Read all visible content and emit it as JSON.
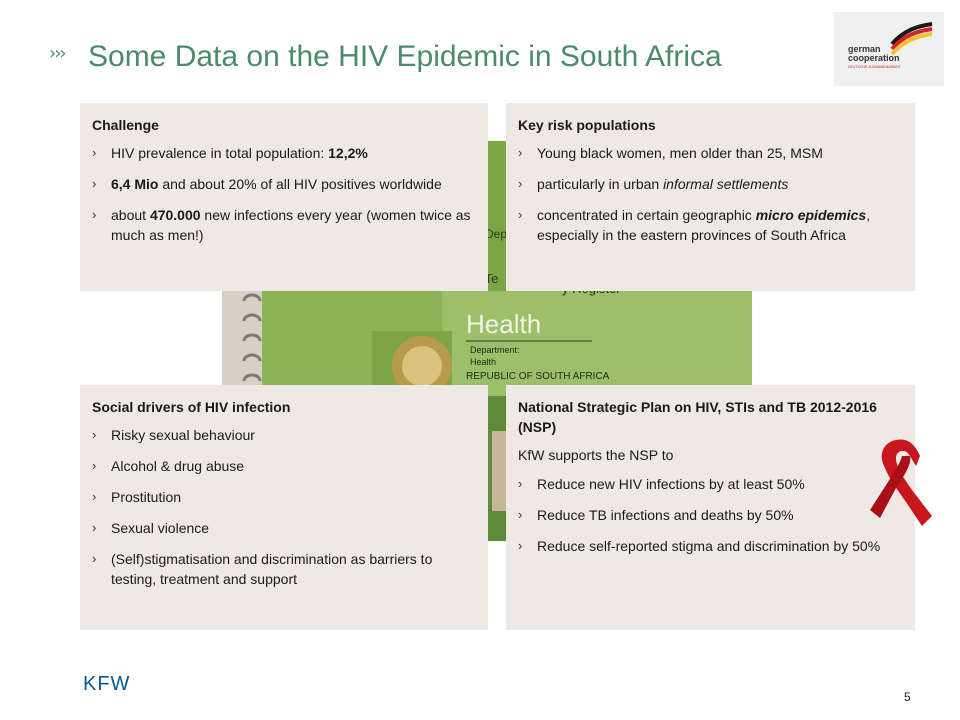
{
  "title": "Some Data on the HIV Epidemic in South Africa",
  "title_marker": "›››",
  "logo": {
    "line1": "german",
    "line2": "cooperation",
    "line3": "DEUTSCHE ZUSAMMENARBEIT"
  },
  "photo": {
    "dept_text": "Depa",
    "te_text": "d Te",
    "register_text": "y Register",
    "health": "Health",
    "department": "Department:",
    "health_sub": "Health",
    "republic": "REPUBLIC OF SOUTH AFRICA"
  },
  "challenge": {
    "heading": "Challenge",
    "items": [
      [
        "HIV prevalence in total population: ",
        "12,2%",
        ""
      ],
      [
        "",
        "6,4 Mio",
        " and about 20% of all HIV positives worldwide"
      ],
      [
        "about ",
        "470.000",
        " new infections every year (women twice as much as men!)"
      ]
    ]
  },
  "risk": {
    "heading": "Key risk populations",
    "item1": "Young black women, men older than 25, MSM",
    "item2_pre": "particularly in urban ",
    "item2_em": "informal settlements",
    "item3_pre": "concentrated in certain geographic ",
    "item3_em": "micro epidemics",
    "item3_post": ", especially in the eastern provinces of South Africa"
  },
  "drivers": {
    "heading": "Social drivers of HIV infection",
    "items": [
      "Risky sexual behaviour",
      "Alcohol & drug abuse",
      "Prostitution",
      "Sexual violence",
      "(Self)stigmatisation and discrimination as barriers to testing, treatment and support"
    ]
  },
  "nsp": {
    "heading": "National Strategic Plan on HIV, STIs and TB 2012-2016 (NSP)",
    "intro": "KfW supports the NSP to",
    "items": [
      "Reduce new HIV infections by at least 50%",
      "Reduce TB infections and deaths by 50%",
      "Reduce self-reported stigma and discrimination by 50%"
    ]
  },
  "footer": {
    "brand": "KFW",
    "page": "5"
  },
  "colors": {
    "title": "#4a8a6e",
    "box_bg": "#efe9e6",
    "kfw": "#0a5a8a",
    "ribbon": "#c8161d"
  }
}
